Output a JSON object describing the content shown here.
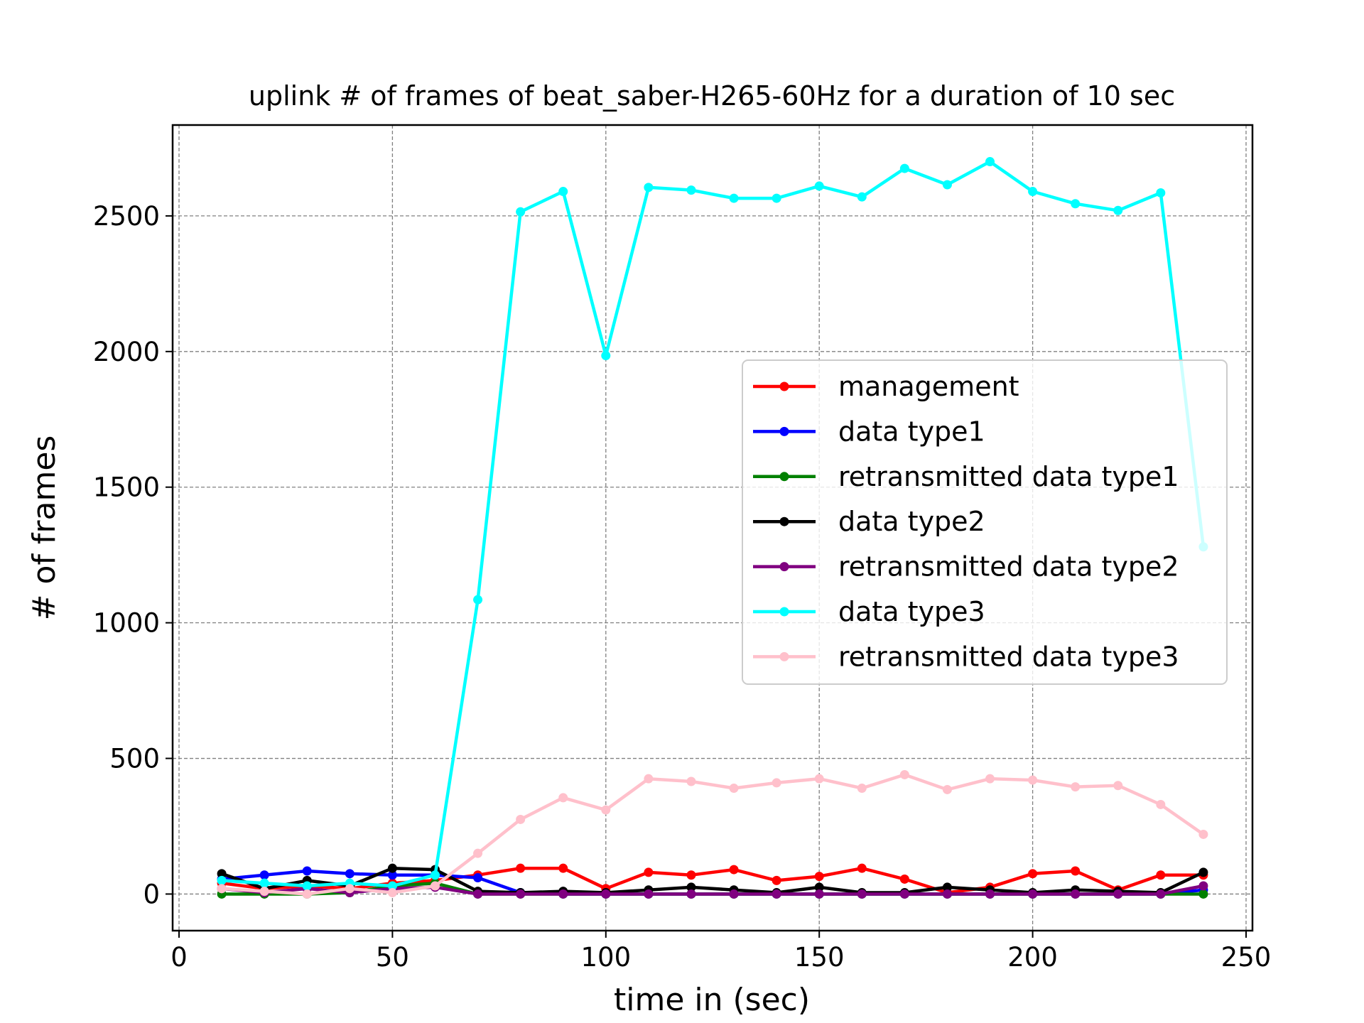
{
  "chart_data": {
    "type": "line",
    "title": "uplink # of frames of beat_saber-H265-60Hz for a duration of 10 sec",
    "xlabel": "time in (sec)",
    "ylabel": "# of frames",
    "xlim": [
      -1.5,
      251.5
    ],
    "ylim": [
      -135,
      2835
    ],
    "xticks": [
      0,
      50,
      100,
      150,
      200,
      250
    ],
    "yticks": [
      0,
      500,
      1000,
      1500,
      2000,
      2500
    ],
    "grid": true,
    "legend_position": "center-right",
    "x": [
      10,
      20,
      30,
      40,
      50,
      60,
      70,
      80,
      90,
      100,
      110,
      120,
      130,
      140,
      150,
      160,
      170,
      180,
      190,
      200,
      210,
      220,
      230,
      240
    ],
    "series": [
      {
        "name": "management",
        "color": "#ff0000",
        "values": [
          40,
          20,
          30,
          20,
          40,
          50,
          70,
          95,
          95,
          20,
          80,
          70,
          90,
          50,
          65,
          95,
          55,
          5,
          25,
          75,
          85,
          15,
          70,
          70
        ]
      },
      {
        "name": "data type1",
        "color": "#0000ff",
        "values": [
          55,
          70,
          85,
          75,
          70,
          70,
          60,
          5,
          0,
          0,
          0,
          0,
          0,
          0,
          0,
          0,
          0,
          0,
          0,
          0,
          0,
          0,
          0,
          15
        ]
      },
      {
        "name": "retransmitted data type1",
        "color": "#008000",
        "values": [
          0,
          0,
          0,
          5,
          30,
          40,
          0,
          0,
          0,
          0,
          0,
          0,
          0,
          0,
          0,
          0,
          0,
          0,
          0,
          0,
          0,
          0,
          0,
          0
        ]
      },
      {
        "name": "data type2",
        "color": "#000000",
        "values": [
          75,
          20,
          50,
          30,
          95,
          90,
          10,
          5,
          10,
          5,
          15,
          25,
          15,
          5,
          25,
          5,
          5,
          25,
          15,
          5,
          15,
          10,
          5,
          80
        ]
      },
      {
        "name": "retransmitted data type2",
        "color": "#800080",
        "values": [
          20,
          5,
          20,
          5,
          20,
          25,
          0,
          0,
          0,
          0,
          0,
          0,
          0,
          0,
          0,
          0,
          0,
          0,
          0,
          0,
          0,
          0,
          0,
          30
        ]
      },
      {
        "name": "data type3",
        "color": "#00ffff",
        "values": [
          50,
          40,
          30,
          40,
          30,
          70,
          1085,
          2515,
          2590,
          1985,
          2605,
          2595,
          2565,
          2565,
          2610,
          2570,
          2675,
          2615,
          2700,
          2590,
          2545,
          2520,
          2585,
          1280
        ]
      },
      {
        "name": "retransmitted data type3",
        "color": "#ffc0cb",
        "values": [
          20,
          10,
          0,
          20,
          5,
          30,
          150,
          275,
          355,
          310,
          425,
          415,
          390,
          410,
          425,
          390,
          440,
          385,
          425,
          420,
          395,
          400,
          330,
          220
        ]
      }
    ]
  }
}
